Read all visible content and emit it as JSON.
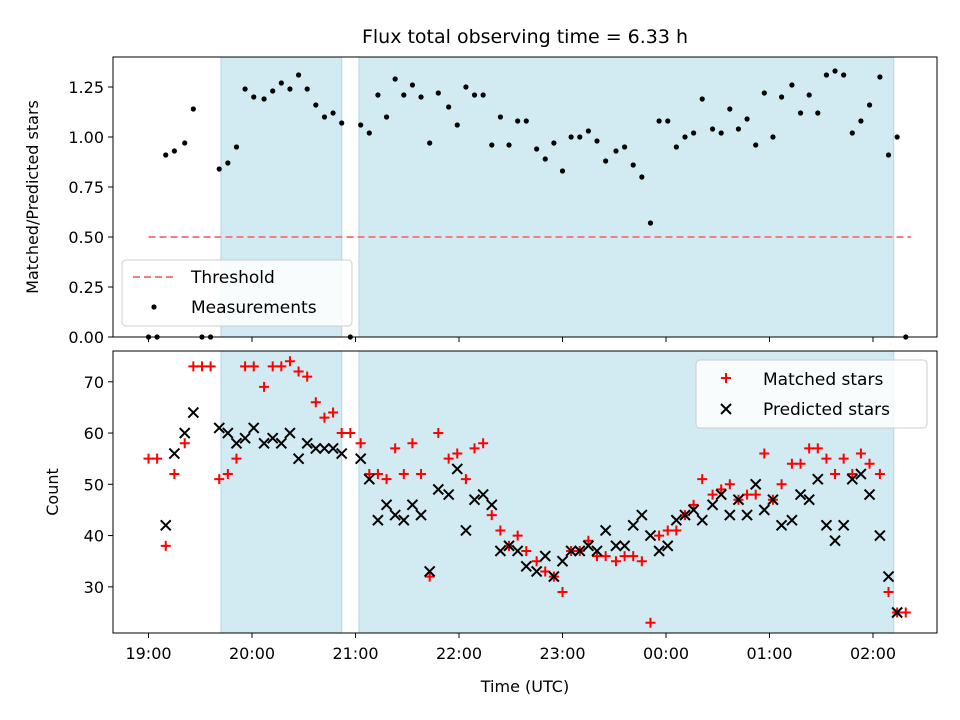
{
  "title": "Flux total observing time = 6.33 h",
  "colors": {
    "shade": "#add8e6",
    "threshold": "#f08080",
    "measurement": "#000000",
    "matched": "#ff0000",
    "predicted": "#000000"
  },
  "chart_data": [
    {
      "type": "scatter",
      "panel": "top",
      "ylabel": "Matched/Predicted stars",
      "xlabel": "",
      "ylim": [
        0,
        1.4
      ],
      "yticks": [
        "0.00",
        "0.25",
        "0.50",
        "0.75",
        "1.00",
        "1.25"
      ],
      "x_tick_labels_hidden": true,
      "legend": {
        "placement": "lower-left",
        "entries": [
          "Threshold",
          "Measurements"
        ]
      },
      "shaded_intervals": [
        [
          "19:42",
          "20:52"
        ],
        [
          "21:02",
          "02:12"
        ]
      ],
      "threshold": {
        "name": "Threshold",
        "y": 0.5,
        "x_range": [
          "19:00",
          "02:22"
        ]
      },
      "series": [
        {
          "name": "Measurements",
          "points": [
            [
              "19:00",
              0.0
            ],
            [
              "19:05",
              0.0
            ],
            [
              "19:10",
              0.91
            ],
            [
              "19:15",
              0.93
            ],
            [
              "19:21",
              0.97
            ],
            [
              "19:26",
              1.14
            ],
            [
              "19:31",
              0.0
            ],
            [
              "19:36",
              0.0
            ],
            [
              "19:41",
              0.84
            ],
            [
              "19:46",
              0.87
            ],
            [
              "19:51",
              0.95
            ],
            [
              "19:56",
              1.24
            ],
            [
              "20:01",
              1.2
            ],
            [
              "20:07",
              1.19
            ],
            [
              "20:12",
              1.23
            ],
            [
              "20:17",
              1.27
            ],
            [
              "20:22",
              1.24
            ],
            [
              "20:27",
              1.31
            ],
            [
              "20:32",
              1.24
            ],
            [
              "20:37",
              1.16
            ],
            [
              "20:42",
              1.1
            ],
            [
              "20:47",
              1.12
            ],
            [
              "20:52",
              1.07
            ],
            [
              "20:57",
              0.0
            ],
            [
              "21:03",
              1.06
            ],
            [
              "21:08",
              1.02
            ],
            [
              "21:13",
              1.21
            ],
            [
              "21:18",
              1.1
            ],
            [
              "21:23",
              1.29
            ],
            [
              "21:28",
              1.21
            ],
            [
              "21:33",
              1.26
            ],
            [
              "21:38",
              1.2
            ],
            [
              "21:43",
              0.97
            ],
            [
              "21:48",
              1.22
            ],
            [
              "21:54",
              1.15
            ],
            [
              "21:59",
              1.06
            ],
            [
              "22:04",
              1.25
            ],
            [
              "22:09",
              1.21
            ],
            [
              "22:14",
              1.21
            ],
            [
              "22:19",
              0.96
            ],
            [
              "22:24",
              1.1
            ],
            [
              "22:29",
              0.96
            ],
            [
              "22:34",
              1.08
            ],
            [
              "22:39",
              1.08
            ],
            [
              "22:45",
              0.94
            ],
            [
              "22:50",
              0.89
            ],
            [
              "22:55",
              0.97
            ],
            [
              "23:00",
              0.83
            ],
            [
              "23:05",
              1.0
            ],
            [
              "23:10",
              1.0
            ],
            [
              "23:15",
              1.03
            ],
            [
              "23:20",
              0.98
            ],
            [
              "23:25",
              0.88
            ],
            [
              "23:31",
              0.93
            ],
            [
              "23:36",
              0.95
            ],
            [
              "23:41",
              0.86
            ],
            [
              "23:46",
              0.8
            ],
            [
              "23:51",
              0.57
            ],
            [
              "23:56",
              1.08
            ],
            [
              "00:01",
              1.08
            ],
            [
              "00:06",
              0.95
            ],
            [
              "00:11",
              1.0
            ],
            [
              "00:16",
              1.02
            ],
            [
              "00:21",
              1.19
            ],
            [
              "00:27",
              1.04
            ],
            [
              "00:32",
              1.02
            ],
            [
              "00:37",
              1.14
            ],
            [
              "00:42",
              1.04
            ],
            [
              "00:47",
              1.09
            ],
            [
              "00:52",
              0.96
            ],
            [
              "00:57",
              1.22
            ],
            [
              "01:02",
              1.0
            ],
            [
              "01:07",
              1.2
            ],
            [
              "01:13",
              1.26
            ],
            [
              "01:18",
              1.12
            ],
            [
              "01:23",
              1.21
            ],
            [
              "01:28",
              1.12
            ],
            [
              "01:33",
              1.31
            ],
            [
              "01:38",
              1.33
            ],
            [
              "01:43",
              1.31
            ],
            [
              "01:48",
              1.02
            ],
            [
              "01:53",
              1.08
            ],
            [
              "01:58",
              1.16
            ],
            [
              "02:04",
              1.3
            ],
            [
              "02:09",
              0.91
            ],
            [
              "02:14",
              1.0
            ],
            [
              "02:19",
              0.0
            ]
          ]
        }
      ]
    },
    {
      "type": "scatter",
      "panel": "bottom",
      "ylabel": "Count",
      "xlabel": "Time (UTC)",
      "ylim": [
        21,
        76
      ],
      "yticks": [
        "30",
        "40",
        "50",
        "60",
        "70"
      ],
      "xticks": [
        "19:00",
        "20:00",
        "21:00",
        "22:00",
        "23:00",
        "00:00",
        "01:00",
        "02:00"
      ],
      "legend": {
        "placement": "upper-right",
        "entries": [
          "Matched stars",
          "Predicted stars"
        ]
      },
      "shaded_intervals": [
        [
          "19:42",
          "20:52"
        ],
        [
          "21:02",
          "02:12"
        ]
      ],
      "series": [
        {
          "name": "Matched stars",
          "marker": "plus",
          "points": [
            [
              "19:00",
              55
            ],
            [
              "19:05",
              55
            ],
            [
              "19:10",
              38
            ],
            [
              "19:15",
              52
            ],
            [
              "19:21",
              58
            ],
            [
              "19:26",
              73
            ],
            [
              "19:31",
              73
            ],
            [
              "19:36",
              73
            ],
            [
              "19:41",
              51
            ],
            [
              "19:46",
              52
            ],
            [
              "19:51",
              55
            ],
            [
              "19:56",
              73
            ],
            [
              "20:01",
              73
            ],
            [
              "20:07",
              69
            ],
            [
              "20:12",
              73
            ],
            [
              "20:17",
              73
            ],
            [
              "20:22",
              74
            ],
            [
              "20:27",
              72
            ],
            [
              "20:32",
              71
            ],
            [
              "20:37",
              66
            ],
            [
              "20:42",
              63
            ],
            [
              "20:47",
              64
            ],
            [
              "20:52",
              60
            ],
            [
              "20:57",
              60
            ],
            [
              "21:03",
              58
            ],
            [
              "21:08",
              52
            ],
            [
              "21:13",
              52
            ],
            [
              "21:18",
              51
            ],
            [
              "21:23",
              57
            ],
            [
              "21:28",
              52
            ],
            [
              "21:33",
              58
            ],
            [
              "21:38",
              52
            ],
            [
              "21:43",
              32
            ],
            [
              "21:48",
              60
            ],
            [
              "21:54",
              55
            ],
            [
              "21:59",
              56
            ],
            [
              "22:04",
              51
            ],
            [
              "22:09",
              57
            ],
            [
              "22:14",
              58
            ],
            [
              "22:19",
              44
            ],
            [
              "22:24",
              41
            ],
            [
              "22:29",
              38
            ],
            [
              "22:34",
              40
            ],
            [
              "22:39",
              37
            ],
            [
              "22:45",
              35
            ],
            [
              "22:50",
              33
            ],
            [
              "22:55",
              32
            ],
            [
              "23:00",
              29
            ],
            [
              "23:05",
              37
            ],
            [
              "23:10",
              37
            ],
            [
              "23:15",
              39
            ],
            [
              "23:20",
              36
            ],
            [
              "23:25",
              36
            ],
            [
              "23:31",
              35
            ],
            [
              "23:36",
              36
            ],
            [
              "23:41",
              36
            ],
            [
              "23:46",
              35
            ],
            [
              "23:51",
              23
            ],
            [
              "23:56",
              40
            ],
            [
              "00:01",
              41
            ],
            [
              "00:06",
              41
            ],
            [
              "00:11",
              44
            ],
            [
              "00:16",
              46
            ],
            [
              "00:21",
              51
            ],
            [
              "00:27",
              48
            ],
            [
              "00:32",
              49
            ],
            [
              "00:37",
              50
            ],
            [
              "00:42",
              47
            ],
            [
              "00:47",
              48
            ],
            [
              "00:52",
              48
            ],
            [
              "00:57",
              56
            ],
            [
              "01:02",
              47
            ],
            [
              "01:07",
              50
            ],
            [
              "01:13",
              54
            ],
            [
              "01:18",
              54
            ],
            [
              "01:23",
              57
            ],
            [
              "01:28",
              57
            ],
            [
              "01:33",
              55
            ],
            [
              "01:38",
              52
            ],
            [
              "01:43",
              55
            ],
            [
              "01:48",
              52
            ],
            [
              "01:53",
              56
            ],
            [
              "01:58",
              54
            ],
            [
              "02:04",
              52
            ],
            [
              "02:09",
              29
            ],
            [
              "02:14",
              25
            ],
            [
              "02:19",
              25
            ]
          ]
        },
        {
          "name": "Predicted stars",
          "marker": "x",
          "points": [
            [
              "19:10",
              42
            ],
            [
              "19:15",
              56
            ],
            [
              "19:21",
              60
            ],
            [
              "19:26",
              64
            ],
            [
              "19:41",
              61
            ],
            [
              "19:46",
              60
            ],
            [
              "19:51",
              58
            ],
            [
              "19:56",
              59
            ],
            [
              "20:01",
              61
            ],
            [
              "20:07",
              58
            ],
            [
              "20:12",
              59
            ],
            [
              "20:17",
              58
            ],
            [
              "20:22",
              60
            ],
            [
              "20:27",
              55
            ],
            [
              "20:32",
              58
            ],
            [
              "20:37",
              57
            ],
            [
              "20:42",
              57
            ],
            [
              "20:47",
              57
            ],
            [
              "20:52",
              56
            ],
            [
              "21:03",
              55
            ],
            [
              "21:08",
              51
            ],
            [
              "21:13",
              43
            ],
            [
              "21:18",
              46
            ],
            [
              "21:23",
              44
            ],
            [
              "21:28",
              43
            ],
            [
              "21:33",
              46
            ],
            [
              "21:38",
              44
            ],
            [
              "21:43",
              33
            ],
            [
              "21:48",
              49
            ],
            [
              "21:54",
              48
            ],
            [
              "21:59",
              53
            ],
            [
              "22:04",
              41
            ],
            [
              "22:09",
              47
            ],
            [
              "22:14",
              48
            ],
            [
              "22:19",
              46
            ],
            [
              "22:24",
              37
            ],
            [
              "22:29",
              38
            ],
            [
              "22:34",
              37
            ],
            [
              "22:39",
              34
            ],
            [
              "22:45",
              33
            ],
            [
              "22:50",
              36
            ],
            [
              "22:55",
              32
            ],
            [
              "23:00",
              35
            ],
            [
              "23:05",
              37
            ],
            [
              "23:10",
              37
            ],
            [
              "23:15",
              38
            ],
            [
              "23:20",
              37
            ],
            [
              "23:25",
              41
            ],
            [
              "23:31",
              38
            ],
            [
              "23:36",
              38
            ],
            [
              "23:41",
              42
            ],
            [
              "23:46",
              44
            ],
            [
              "23:51",
              40
            ],
            [
              "23:56",
              37
            ],
            [
              "00:01",
              38
            ],
            [
              "00:06",
              43
            ],
            [
              "00:11",
              44
            ],
            [
              "00:16",
              45
            ],
            [
              "00:21",
              43
            ],
            [
              "00:27",
              46
            ],
            [
              "00:32",
              48
            ],
            [
              "00:37",
              44
            ],
            [
              "00:42",
              47
            ],
            [
              "00:47",
              44
            ],
            [
              "00:52",
              50
            ],
            [
              "00:57",
              45
            ],
            [
              "01:02",
              47
            ],
            [
              "01:07",
              42
            ],
            [
              "01:13",
              43
            ],
            [
              "01:18",
              48
            ],
            [
              "01:23",
              47
            ],
            [
              "01:28",
              51
            ],
            [
              "01:33",
              42
            ],
            [
              "01:38",
              39
            ],
            [
              "01:43",
              42
            ],
            [
              "01:48",
              51
            ],
            [
              "01:53",
              52
            ],
            [
              "01:58",
              48
            ],
            [
              "02:04",
              40
            ],
            [
              "02:09",
              32
            ],
            [
              "02:14",
              25
            ]
          ]
        }
      ]
    }
  ]
}
